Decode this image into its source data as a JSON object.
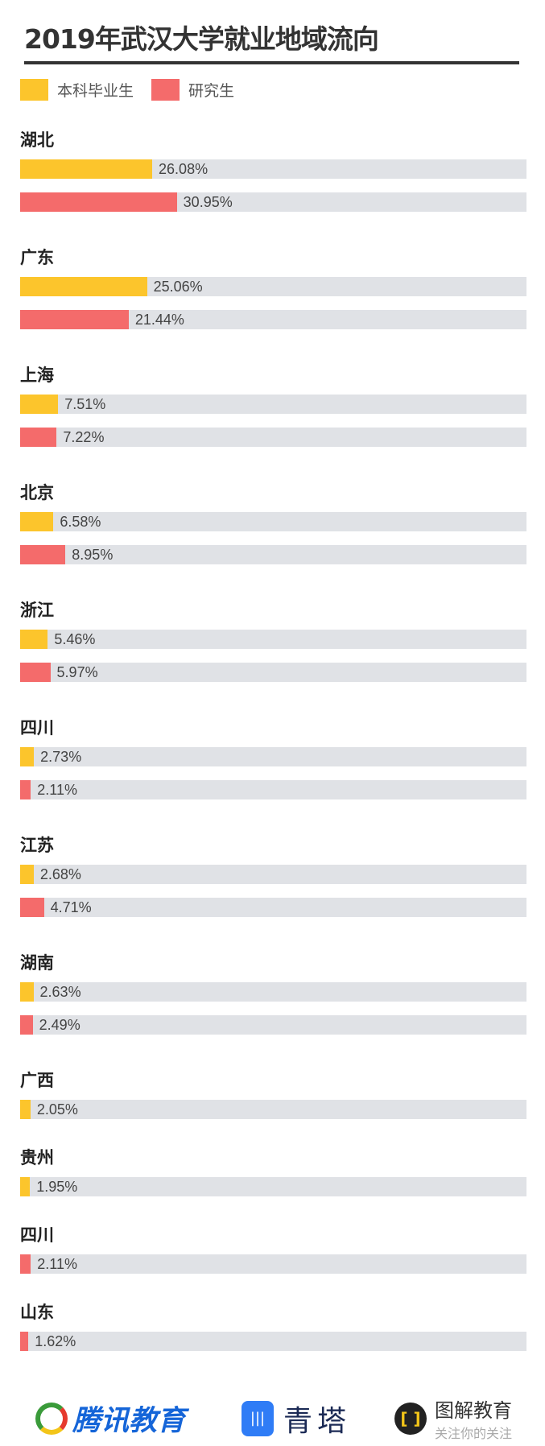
{
  "colors": {
    "undergraduate": "#fcc52c",
    "graduate": "#f46b6b",
    "track": "#e0e2e6"
  },
  "chart_data": {
    "type": "bar",
    "orientation": "horizontal",
    "title": "2019年武汉大学就业地域流向",
    "xlim": [
      0,
      100
    ],
    "legend": {
      "placement": "top-left",
      "entries": [
        "本科毕业生",
        "研究生"
      ]
    },
    "groups": [
      {
        "label": "湖北",
        "values": [
          {
            "series": "本科毕业生",
            "value": 26.08,
            "text": "26.08%"
          },
          {
            "series": "研究生",
            "value": 30.95,
            "text": "30.95%"
          }
        ]
      },
      {
        "label": "广东",
        "values": [
          {
            "series": "本科毕业生",
            "value": 25.06,
            "text": "25.06%"
          },
          {
            "series": "研究生",
            "value": 21.44,
            "text": "21.44%"
          }
        ]
      },
      {
        "label": "上海",
        "values": [
          {
            "series": "本科毕业生",
            "value": 7.51,
            "text": "7.51%"
          },
          {
            "series": "研究生",
            "value": 7.22,
            "text": "7.22%"
          }
        ]
      },
      {
        "label": "北京",
        "values": [
          {
            "series": "本科毕业生",
            "value": 6.58,
            "text": "6.58%"
          },
          {
            "series": "研究生",
            "value": 8.95,
            "text": "8.95%"
          }
        ]
      },
      {
        "label": "浙江",
        "values": [
          {
            "series": "本科毕业生",
            "value": 5.46,
            "text": "5.46%"
          },
          {
            "series": "研究生",
            "value": 5.97,
            "text": "5.97%"
          }
        ]
      },
      {
        "label": "四川",
        "values": [
          {
            "series": "本科毕业生",
            "value": 2.73,
            "text": "2.73%"
          },
          {
            "series": "研究生",
            "value": 2.11,
            "text": "2.11%"
          }
        ]
      },
      {
        "label": "江苏",
        "values": [
          {
            "series": "本科毕业生",
            "value": 2.68,
            "text": "2.68%"
          },
          {
            "series": "研究生",
            "value": 4.71,
            "text": "4.71%"
          }
        ]
      },
      {
        "label": "湖南",
        "values": [
          {
            "series": "本科毕业生",
            "value": 2.63,
            "text": "2.63%"
          },
          {
            "series": "研究生",
            "value": 2.49,
            "text": "2.49%"
          }
        ]
      },
      {
        "label": "广西",
        "values": [
          {
            "series": "本科毕业生",
            "value": 2.05,
            "text": "2.05%"
          }
        ]
      },
      {
        "label": "贵州",
        "values": [
          {
            "series": "本科毕业生",
            "value": 1.95,
            "text": "1.95%"
          }
        ]
      },
      {
        "label": "四川",
        "values": [
          {
            "series": "研究生",
            "value": 2.11,
            "text": "2.11%"
          }
        ]
      },
      {
        "label": "山东",
        "values": [
          {
            "series": "研究生",
            "value": 1.62,
            "text": "1.62%"
          }
        ]
      }
    ]
  },
  "footer": {
    "logo1": "腾讯教育",
    "logo2": "青塔",
    "logo3_title": "图解教育",
    "logo3_sub": "关注你的关注"
  }
}
